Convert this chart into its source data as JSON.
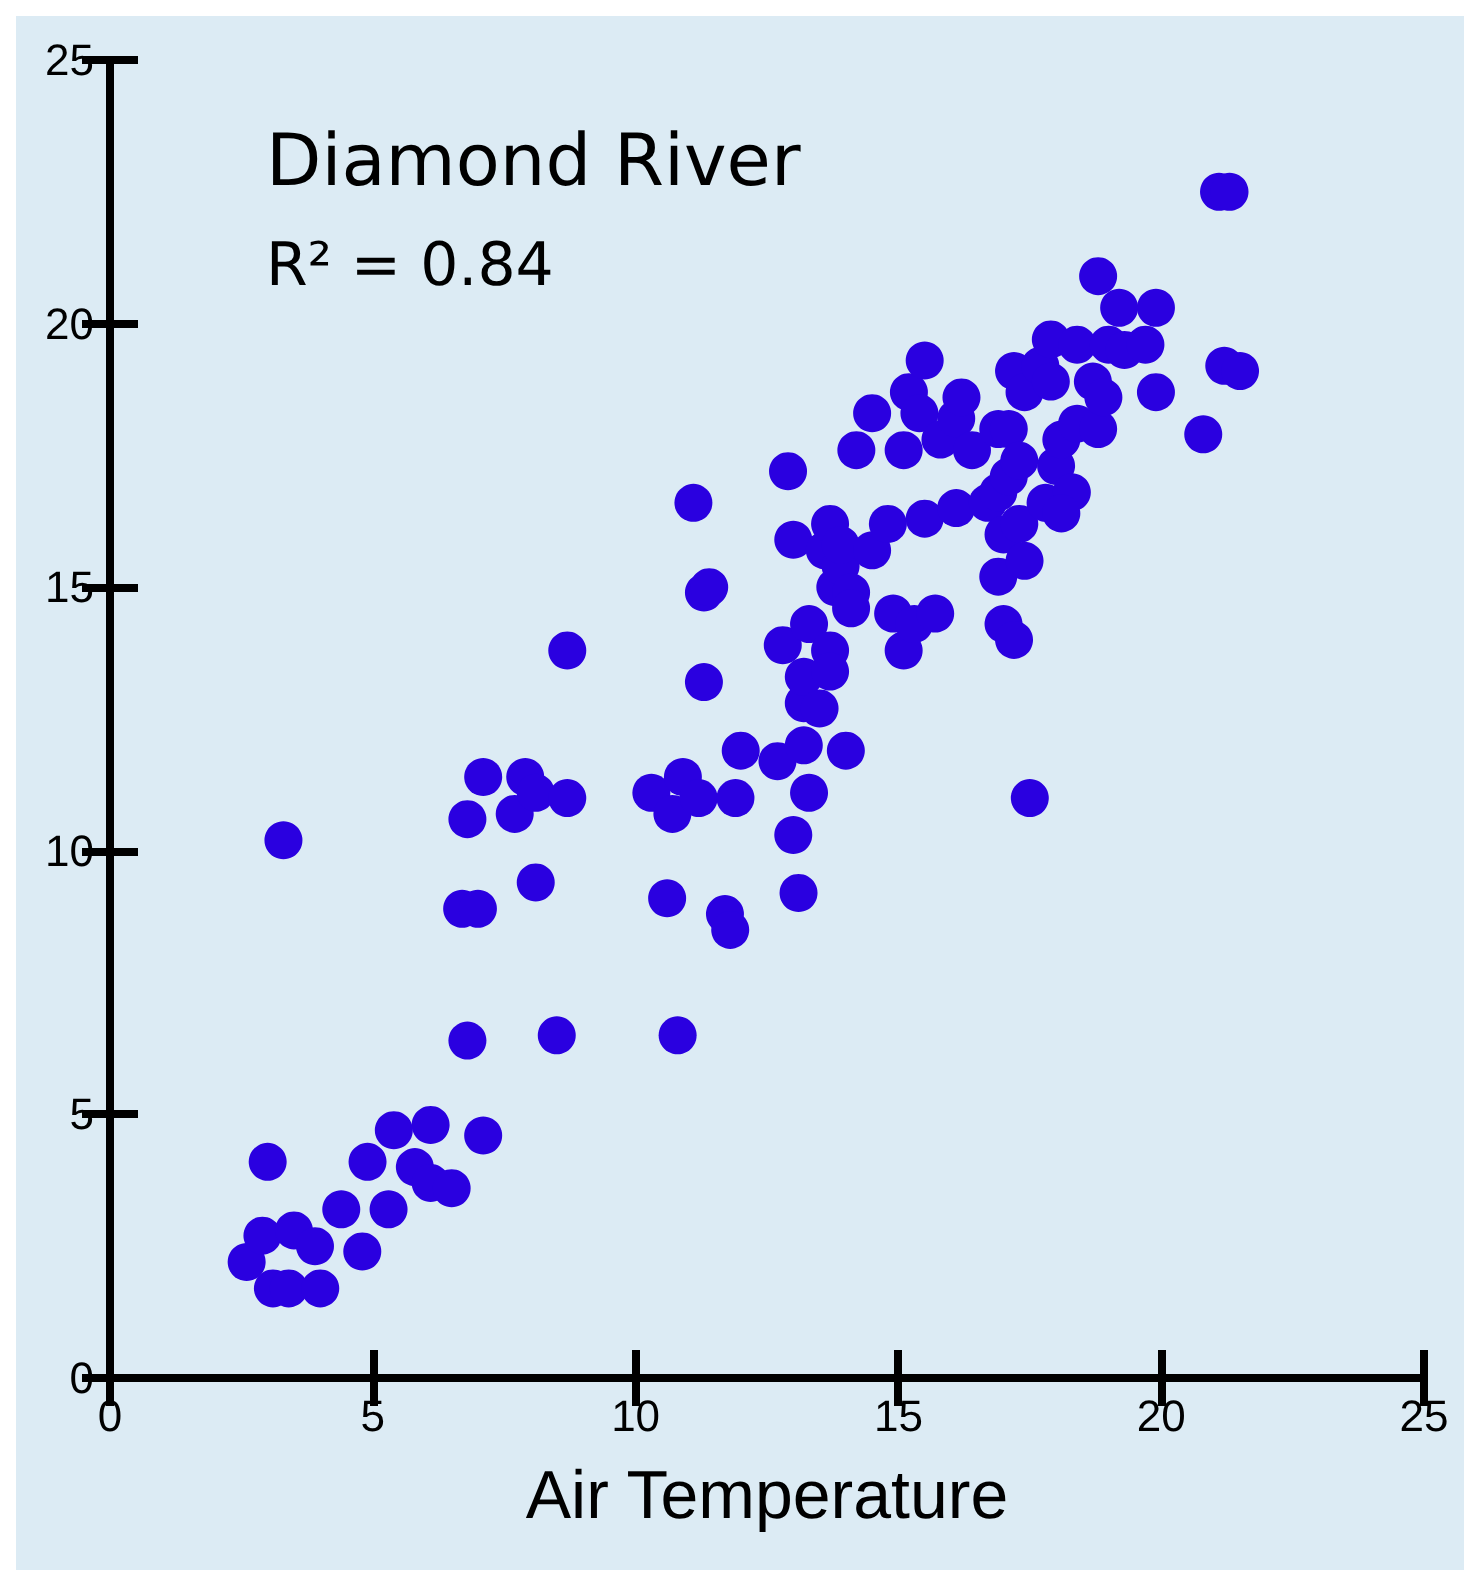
{
  "chart_data": {
    "type": "scatter",
    "xlabel": "Air Temperature",
    "annotations": [
      "Diamond River",
      "R² = 0.84"
    ],
    "xlim": [
      0,
      25
    ],
    "xticks": [
      0,
      5,
      10,
      15,
      20,
      25
    ],
    "ylim": [
      0,
      25
    ],
    "yticks": [
      0,
      5,
      10,
      15,
      20,
      25
    ],
    "grid": false,
    "marker": "circle",
    "series": [
      {
        "color": "#2a00e0",
        "x": [
          2.6,
          2.9,
          3.0,
          3.1,
          3.4,
          3.5,
          3.9,
          4.0,
          4.4,
          4.8,
          4.9,
          5.3,
          5.4,
          5.8,
          6.1,
          6.1,
          6.5,
          7.1,
          3.3,
          6.8,
          6.7,
          7.0,
          6.8,
          7.1,
          7.7,
          7.9,
          8.1,
          8.1,
          8.7,
          8.7,
          8.5,
          10.3,
          10.7,
          10.9,
          10.6,
          10.8,
          11.2,
          11.1,
          11.3,
          11.4,
          11.3,
          11.7,
          11.8,
          11.9,
          12.0,
          12.7,
          12.8,
          12.9,
          13.0,
          13.0,
          13.1,
          13.2,
          13.3,
          13.2,
          13.2,
          13.3,
          13.5,
          13.6,
          13.7,
          13.7,
          13.7,
          13.8,
          13.9,
          13.9,
          14.0,
          14.1,
          14.1,
          14.5,
          14.5,
          14.2,
          14.8,
          14.9,
          15.1,
          15.3,
          15.5,
          15.1,
          15.2,
          15.4,
          15.5,
          15.8,
          16.1,
          16.1,
          15.7,
          16.2,
          16.4,
          16.7,
          16.9,
          16.9,
          17.1,
          17.2,
          17.0,
          16.9,
          17.0,
          17.2,
          17.1,
          17.3,
          17.3,
          17.5,
          17.4,
          17.4,
          17.7,
          17.8,
          18.0,
          18.1,
          18.3,
          17.9,
          17.9,
          18.4,
          18.7,
          18.8,
          18.1,
          18.4,
          18.8,
          18.9,
          19.2,
          19.0,
          19.3,
          19.7,
          19.9,
          19.9,
          20.8,
          21.2,
          21.5,
          21.1,
          21.3
        ],
        "values": [
          2.2,
          2.7,
          4.1,
          1.7,
          1.7,
          2.8,
          2.5,
          1.7,
          3.2,
          2.4,
          4.1,
          3.2,
          4.7,
          4.0,
          3.7,
          4.8,
          3.6,
          4.6,
          10.2,
          6.4,
          8.9,
          8.9,
          10.6,
          11.4,
          10.7,
          11.4,
          11.1,
          9.4,
          11.0,
          13.8,
          6.5,
          11.1,
          10.7,
          11.4,
          9.1,
          6.5,
          11.0,
          16.6,
          14.9,
          15.0,
          13.2,
          8.8,
          8.5,
          11.0,
          11.9,
          11.7,
          13.9,
          17.2,
          15.9,
          10.3,
          9.2,
          12.0,
          11.1,
          12.8,
          13.3,
          14.3,
          12.7,
          15.7,
          16.2,
          13.8,
          13.4,
          15.0,
          15.4,
          15.8,
          11.9,
          14.9,
          14.6,
          15.7,
          18.3,
          17.6,
          16.2,
          14.5,
          13.8,
          14.3,
          16.3,
          17.6,
          18.7,
          18.3,
          19.3,
          17.8,
          18.2,
          16.5,
          14.5,
          18.6,
          17.6,
          16.6,
          16.8,
          18.0,
          17.1,
          19.1,
          16.0,
          15.2,
          14.3,
          14.0,
          18.0,
          17.4,
          16.2,
          11.0,
          18.7,
          15.5,
          19.2,
          16.6,
          17.3,
          17.8,
          16.8,
          18.9,
          19.7,
          18.1,
          18.9,
          18.0,
          16.4,
          19.6,
          20.9,
          18.6,
          20.3,
          19.6,
          19.5,
          19.6,
          20.3,
          18.7,
          17.9,
          19.2,
          19.1,
          22.5,
          22.5
        ]
      }
    ]
  }
}
